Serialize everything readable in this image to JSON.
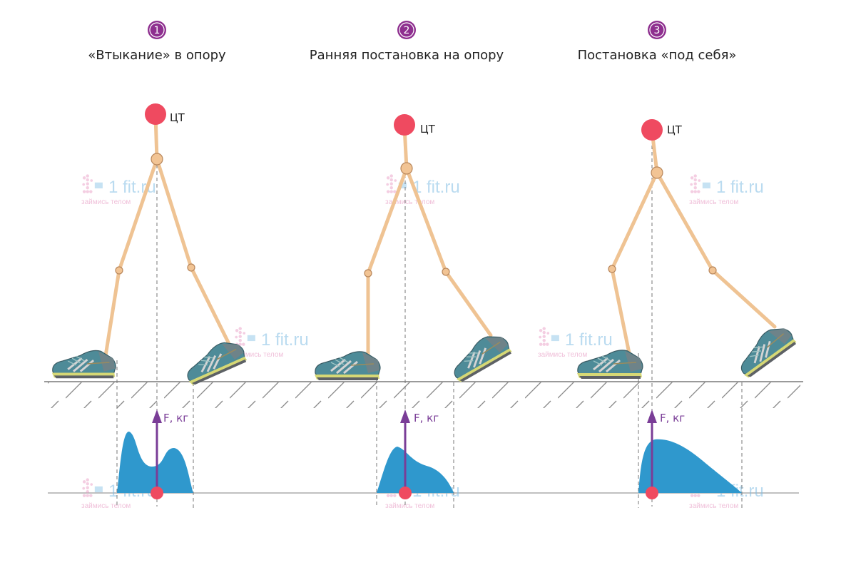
{
  "colors": {
    "accent_purple": "#8e2f8f",
    "force_arrow": "#7a3d97",
    "com_red": "#ef4a60",
    "limb": "#efc393",
    "joint_fill": "#f2c494",
    "joint_stroke": "#b8865a",
    "force_fill": "#2f98cd",
    "ground_line": "#9a9a9a",
    "dashed_line": "#777777",
    "watermark_blue": "#7fbde3",
    "watermark_pink": "#e79bc3"
  },
  "icons": [
    "number-badge-icon",
    "running-shoe-icon",
    "1fit-watermark-logo"
  ],
  "watermark": {
    "brand": "1 fit.ru",
    "tagline": "займись телом"
  },
  "phases": [
    {
      "number": "1",
      "title": "«Втыкание» в опору",
      "com_label": "ЦТ",
      "force_label": "F, кг",
      "force_profile": "double-peak"
    },
    {
      "number": "2",
      "title": "Ранняя постановка на опору",
      "com_label": "ЦТ",
      "force_label": "F, кг",
      "force_profile": "early-peak"
    },
    {
      "number": "3",
      "title": "Постановка «под себя»",
      "com_label": "ЦТ",
      "force_label": "F, кг",
      "force_profile": "smooth-hump"
    }
  ]
}
